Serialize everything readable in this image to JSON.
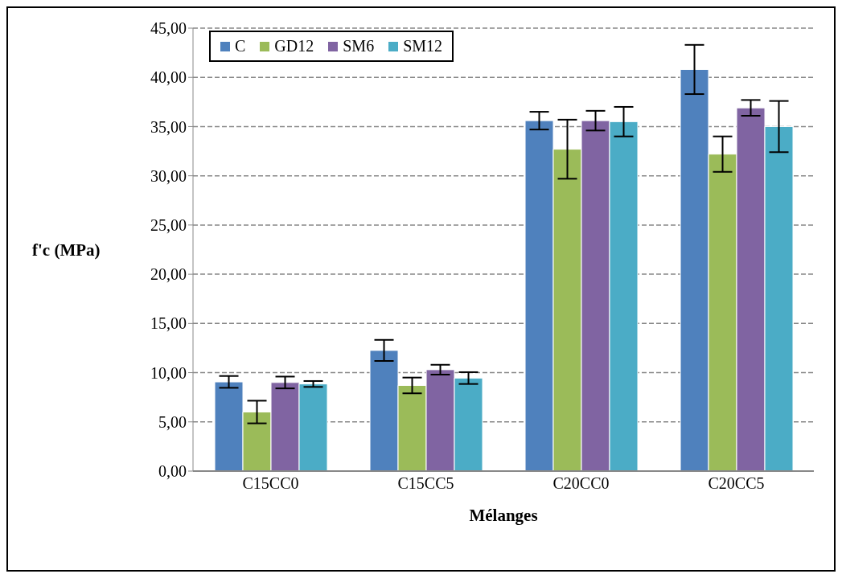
{
  "chart_data": {
    "type": "bar",
    "xlabel": "Mélanges",
    "ylabel": "f'c (MPa)",
    "categories": [
      "C15CC0",
      "C15CC5",
      "C20CC0",
      "C20CC5"
    ],
    "series": [
      {
        "name": "C",
        "color": "#4f81bd",
        "values": [
          9.06,
          12.26,
          35.6,
          40.8
        ],
        "errors": [
          0.6,
          1.07,
          0.9,
          2.5
        ]
      },
      {
        "name": "GD12",
        "color": "#9bbb59",
        "values": [
          6.0,
          8.7,
          32.7,
          32.2
        ],
        "errors": [
          1.15,
          0.8,
          3.0,
          1.8
        ]
      },
      {
        "name": "SM6",
        "color": "#8064a2",
        "values": [
          9.0,
          10.3,
          35.6,
          36.9
        ],
        "errors": [
          0.6,
          0.5,
          1.0,
          0.8
        ]
      },
      {
        "name": "SM12",
        "color": "#4bacc6",
        "values": [
          8.85,
          9.45,
          35.5,
          35.0
        ],
        "errors": [
          0.3,
          0.6,
          1.5,
          2.6
        ]
      }
    ],
    "ylim": [
      0,
      45
    ],
    "yticks": [
      {
        "value": 0,
        "label": "0,00"
      },
      {
        "value": 5,
        "label": "5,00"
      },
      {
        "value": 10,
        "label": "10,00"
      },
      {
        "value": 15,
        "label": "15,00"
      },
      {
        "value": 20,
        "label": "20,00"
      },
      {
        "value": 25,
        "label": "25,00"
      },
      {
        "value": 30,
        "label": "30,00"
      },
      {
        "value": 35,
        "label": "35,00"
      },
      {
        "value": 40,
        "label": "40,00"
      },
      {
        "value": 45,
        "label": "45,00"
      }
    ],
    "grid": "y",
    "legend": "top left"
  }
}
